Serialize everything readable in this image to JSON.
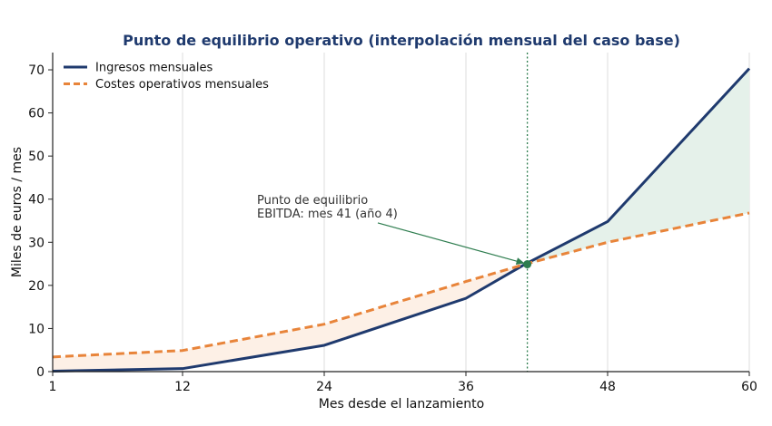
{
  "chart_data": {
    "type": "line",
    "title": "Punto de equilibrio operativo (interpolación mensual del caso base)",
    "xlabel": "Mes desde el lanzamiento",
    "ylabel": "Miles de euros / mes",
    "xlim": [
      1,
      60
    ],
    "ylim": [
      0,
      74
    ],
    "x_ticks": [
      1,
      12,
      24,
      36,
      48,
      60
    ],
    "y_ticks": [
      0,
      10,
      20,
      30,
      40,
      50,
      60,
      70
    ],
    "grid": "vertical",
    "legend_position": "top-left",
    "series": [
      {
        "name": "Ingresos mensuales",
        "color": "#1f3a6e",
        "style": "solid",
        "points": [
          [
            1,
            0.1
          ],
          [
            12,
            0.7
          ],
          [
            24,
            6.1
          ],
          [
            36,
            17.0
          ],
          [
            41,
            24.9
          ],
          [
            48,
            34.8
          ],
          [
            60,
            70.3
          ]
        ]
      },
      {
        "name": "Costes operativos mensuales",
        "color": "#e8843a",
        "style": "dashed",
        "points": [
          [
            1,
            3.4
          ],
          [
            12,
            4.9
          ],
          [
            24,
            11.0
          ],
          [
            36,
            20.9
          ],
          [
            41,
            24.9
          ],
          [
            48,
            30.0
          ],
          [
            60,
            36.8
          ]
        ]
      }
    ],
    "fill_loss_color": "#fdf0e6",
    "fill_profit_color": "#e5f1ea",
    "breakeven": {
      "x": 41.2,
      "y": 24.9,
      "line_color": "#2e7d4f",
      "label_lines": [
        "Punto de equilibrio",
        "EBITDA: mes 41 (año 4)"
      ]
    },
    "title_color": "#1f3a6e"
  }
}
